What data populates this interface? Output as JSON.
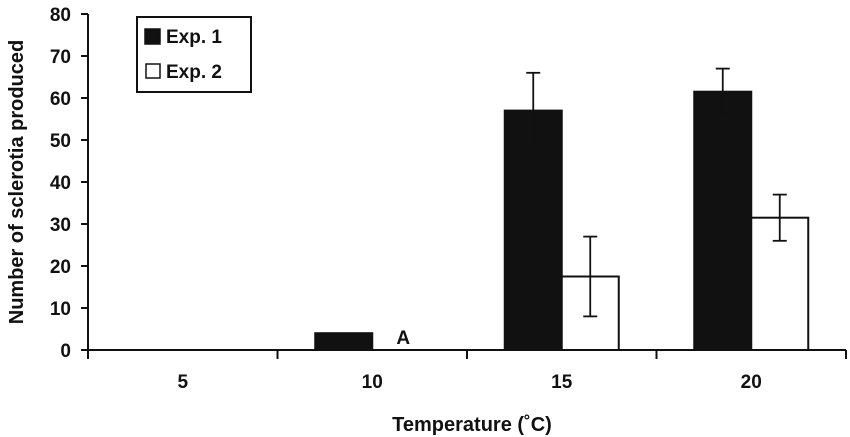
{
  "chart_data": {
    "type": "bar",
    "title": "",
    "xlabel": "Temperature (˚C)",
    "ylabel": "Number of sclerotia produced",
    "categories": [
      "5",
      "10",
      "15",
      "20"
    ],
    "series": [
      {
        "name": "Exp. 1",
        "values": [
          0,
          4,
          57,
          61.5
        ],
        "errors": [
          null,
          null,
          9,
          5.5
        ],
        "color": "#111111"
      },
      {
        "name": "Exp. 2",
        "values": [
          0,
          0,
          17.5,
          31.5
        ],
        "errors": [
          null,
          null,
          9.5,
          5.5
        ],
        "color": "#ffffff"
      }
    ],
    "ylim": [
      0,
      80
    ],
    "yticks": [
      0,
      10,
      20,
      30,
      40,
      50,
      60,
      70,
      80
    ],
    "grid": false,
    "legend_position": "top-left",
    "annotations": [
      {
        "text": "A",
        "category": "10",
        "series": "Exp. 2"
      }
    ]
  }
}
